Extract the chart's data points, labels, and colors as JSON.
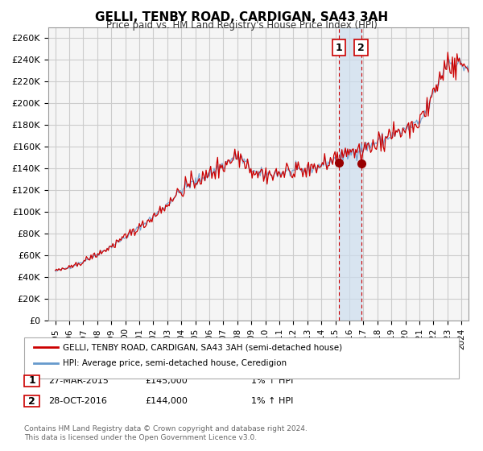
{
  "title": "GELLI, TENBY ROAD, CARDIGAN, SA43 3AH",
  "subtitle": "Price paid vs. HM Land Registry's House Price Index (HPI)",
  "legend_line1": "GELLI, TENBY ROAD, CARDIGAN, SA43 3AH (semi-detached house)",
  "legend_line2": "HPI: Average price, semi-detached house, Ceredigion",
  "sale1_label": "1",
  "sale1_date": "27-MAR-2015",
  "sale1_price": 145000,
  "sale1_hpi": "1% ↑ HPI",
  "sale2_label": "2",
  "sale2_date": "28-OCT-2016",
  "sale2_price": 144000,
  "sale2_hpi": "1% ↑ HPI",
  "sale1_x": 2015.23,
  "sale2_x": 2016.83,
  "line_color_red": "#cc0000",
  "line_color_blue": "#6699cc",
  "marker_color": "#990000",
  "vline_color": "#cc0000",
  "vspan_color": "#ccddee",
  "grid_color": "#cccccc",
  "bg_color": "#f5f5f5",
  "ylabel_prefix": "£",
  "ylim": [
    0,
    270000
  ],
  "xlim_start": 1994.5,
  "xlim_end": 2024.5,
  "footer": "Contains HM Land Registry data © Crown copyright and database right 2024.\nThis data is licensed under the Open Government Licence v3.0."
}
